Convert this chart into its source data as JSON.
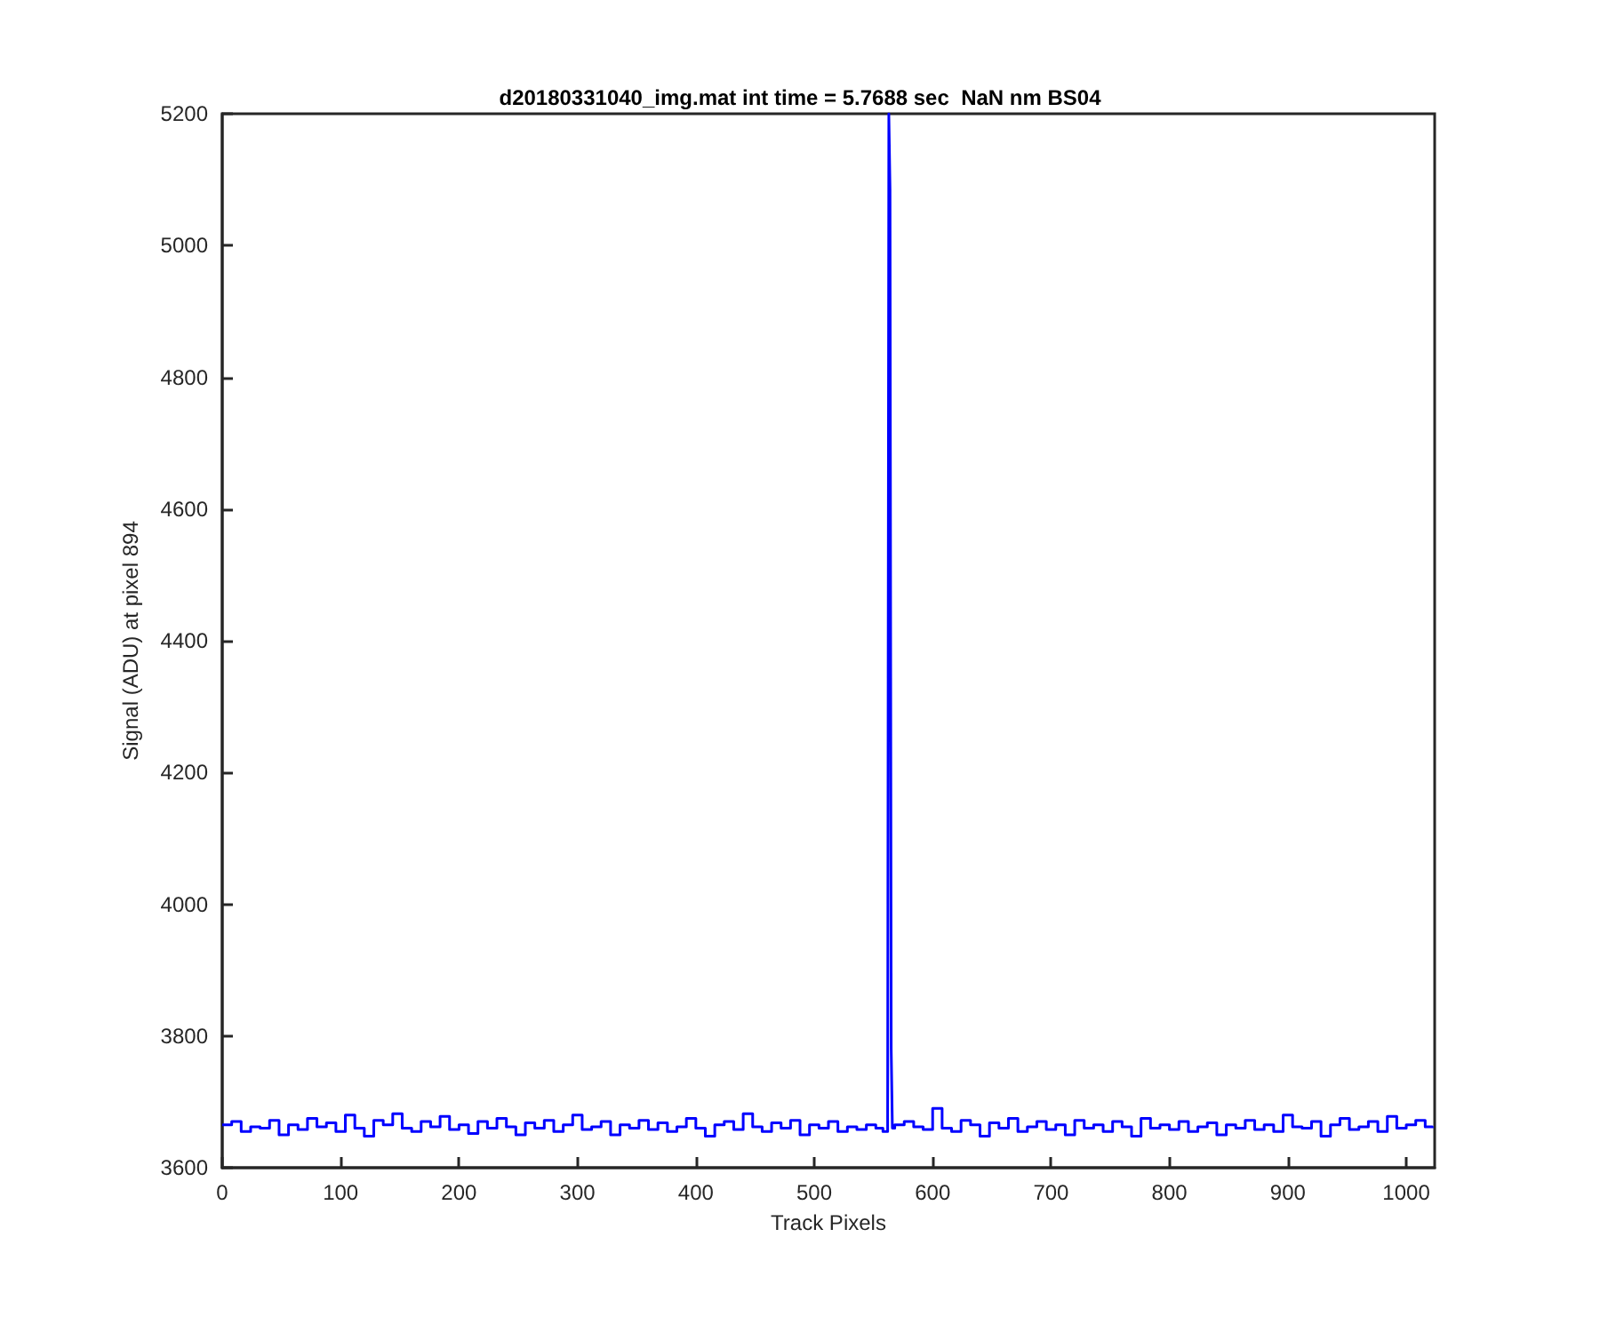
{
  "chart_data": {
    "type": "step",
    "title": "d20180331040_img.mat int time = 5.7688 sec  NaN nm BS04",
    "xlabel": "Track Pixels",
    "ylabel": "Signal (ADU) at pixel 894",
    "x": [
      0,
      8,
      16,
      24,
      32,
      40,
      48,
      56,
      64,
      72,
      80,
      88,
      96,
      104,
      112,
      120,
      128,
      136,
      144,
      152,
      160,
      168,
      176,
      184,
      192,
      200,
      208,
      216,
      224,
      232,
      240,
      248,
      256,
      264,
      272,
      280,
      288,
      296,
      304,
      312,
      320,
      328,
      336,
      344,
      352,
      360,
      368,
      376,
      384,
      392,
      400,
      408,
      416,
      424,
      432,
      440,
      448,
      456,
      464,
      472,
      480,
      488,
      496,
      504,
      512,
      520,
      528,
      536,
      544,
      552,
      558,
      562,
      563,
      564,
      565,
      566,
      568,
      576,
      584,
      592,
      600,
      608,
      616,
      624,
      632,
      640,
      648,
      656,
      664,
      672,
      680,
      688,
      696,
      704,
      712,
      720,
      728,
      736,
      744,
      752,
      760,
      768,
      776,
      784,
      792,
      800,
      808,
      816,
      824,
      832,
      840,
      848,
      856,
      864,
      872,
      880,
      888,
      896,
      904,
      912,
      920,
      928,
      936,
      944,
      952,
      960,
      968,
      976,
      984,
      992,
      1000,
      1008,
      1016,
      1022
    ],
    "series": [
      {
        "color": "#0000ff",
        "values": [
          3665,
          3670,
          3655,
          3662,
          3660,
          3672,
          3650,
          3665,
          3658,
          3675,
          3662,
          3668,
          3655,
          3680,
          3660,
          3648,
          3672,
          3665,
          3682,
          3660,
          3655,
          3670,
          3662,
          3678,
          3658,
          3665,
          3652,
          3670,
          3660,
          3675,
          3662,
          3650,
          3668,
          3660,
          3672,
          3655,
          3665,
          3680,
          3658,
          3662,
          3670,
          3650,
          3665,
          3660,
          3672,
          3658,
          3668,
          3655,
          3662,
          3675,
          3660,
          3648,
          3665,
          3670,
          3658,
          3682,
          3662,
          3655,
          3668,
          3660,
          3672,
          3650,
          3665,
          3660,
          3670,
          3655,
          3662,
          3658,
          3665,
          3660,
          3655,
          3675,
          5200,
          5085,
          3780,
          3660,
          3665,
          3670,
          3662,
          3658,
          3690,
          3660,
          3655,
          3672,
          3665,
          3648,
          3668,
          3660,
          3675,
          3655,
          3662,
          3670,
          3658,
          3665,
          3650,
          3672,
          3660,
          3665,
          3655,
          3670,
          3662,
          3648,
          3675,
          3660,
          3665,
          3658,
          3670,
          3655,
          3662,
          3668,
          3650,
          3665,
          3660,
          3672,
          3658,
          3665,
          3655,
          3680,
          3662,
          3660,
          3670,
          3648,
          3665,
          3675,
          3658,
          3662,
          3670,
          3655,
          3678,
          3660,
          3665,
          3672,
          3662,
          3660
        ]
      }
    ],
    "xlim": [
      0,
      1024
    ],
    "xticks": [
      0,
      100,
      200,
      300,
      400,
      500,
      600,
      700,
      800,
      900,
      1000
    ],
    "ylim": [
      3600,
      5200
    ],
    "yticks": [
      3600,
      3800,
      4000,
      4200,
      4400,
      4600,
      4800,
      5000,
      5200
    ],
    "grid": false,
    "marker": "none",
    "line_style": "solid"
  }
}
